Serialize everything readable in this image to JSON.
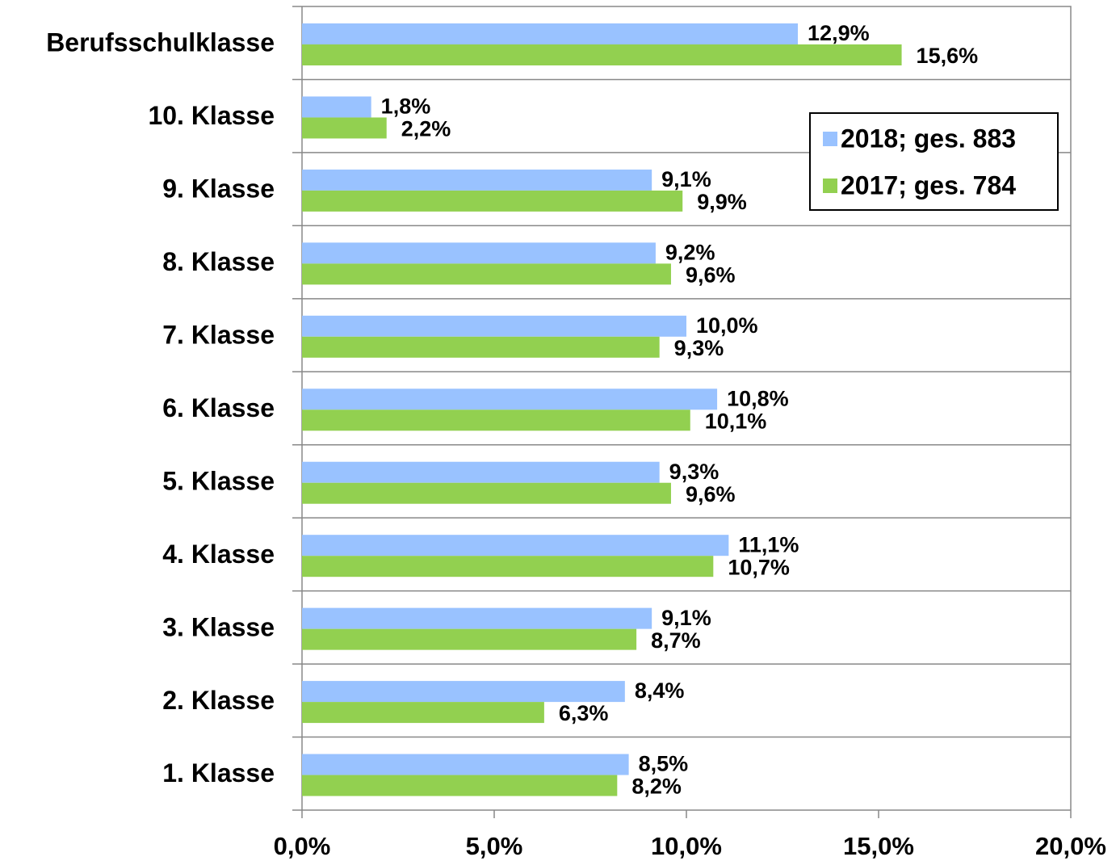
{
  "chart_data": {
    "type": "barh",
    "categories": [
      "Berufsschulklasse",
      "10. Klasse",
      "9. Klasse",
      "8. Klasse",
      "7. Klasse",
      "6. Klasse",
      "5. Klasse",
      "4. Klasse",
      "3. Klasse",
      "2. Klasse",
      "1. Klasse"
    ],
    "series": [
      {
        "name": "2018; ges. 883",
        "color": "#99c2ff",
        "values": [
          12.9,
          1.8,
          9.1,
          9.2,
          10.0,
          10.8,
          9.3,
          11.1,
          9.1,
          8.4,
          8.5
        ],
        "value_labels": [
          "12,9%",
          "1,8%",
          "9,1%",
          "9,2%",
          "10,0%",
          "10,8%",
          "9,3%",
          "11,1%",
          "9,1%",
          "8,4%",
          "8,5%"
        ]
      },
      {
        "name": "2017; ges. 784",
        "color": "#92d050",
        "values": [
          15.6,
          2.2,
          9.9,
          9.6,
          9.3,
          10.1,
          9.6,
          10.7,
          8.7,
          6.3,
          8.2
        ],
        "value_labels": [
          "15,6%",
          "2,2%",
          "9,9%",
          "9,6%",
          "9,3%",
          "10,1%",
          "9,6%",
          "10,7%",
          "8,7%",
          "6,3%",
          "8,2%"
        ]
      }
    ],
    "xlim": [
      0,
      20
    ],
    "xticks": [
      {
        "value": 0,
        "label": "0,0%"
      },
      {
        "value": 5,
        "label": "5,0%"
      },
      {
        "value": 10,
        "label": "10,0%"
      },
      {
        "value": 15,
        "label": "15,0%"
      },
      {
        "value": 20,
        "label": "20,0%"
      }
    ],
    "legend": "upper right"
  }
}
